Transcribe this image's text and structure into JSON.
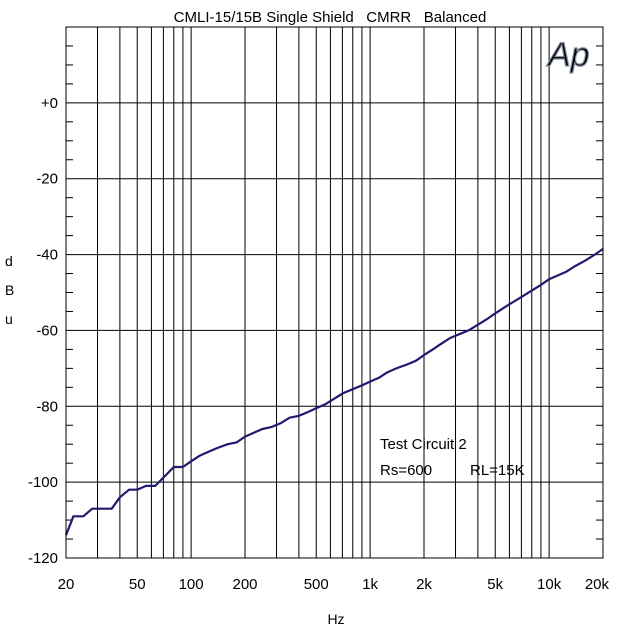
{
  "chart_data": {
    "type": "line",
    "title": "CMLI-15/15B Single Shield   CMRR   Balanced",
    "xlabel": "Hz",
    "ylabel": [
      "d",
      "B",
      "u"
    ],
    "x_scale": "log",
    "xlim": [
      20,
      20000
    ],
    "ylim": [
      -120,
      20
    ],
    "grid": true,
    "x_ticks": [
      20,
      50,
      100,
      200,
      500,
      1000,
      2000,
      5000,
      10000,
      20000
    ],
    "x_tick_labels": [
      "20",
      "50",
      "100",
      "200",
      "500",
      "1k",
      "2k",
      "5k",
      "10k",
      "20k"
    ],
    "y_ticks": [
      0,
      -20,
      -40,
      -60,
      -80,
      -100,
      -120
    ],
    "y_tick_labels": [
      "+0",
      "-20",
      "-40",
      "-60",
      "-80",
      "-100",
      "-120"
    ],
    "annotations": [
      "Test Circuit 2",
      "Rs=600",
      "RL=15K"
    ],
    "logo": "Ap",
    "series": [
      {
        "color": "#1f1a6e",
        "x": [
          20,
          22,
          25,
          28,
          32,
          36,
          40,
          45,
          50,
          56,
          63,
          71,
          80,
          90,
          100,
          112,
          125,
          140,
          160,
          180,
          200,
          224,
          250,
          280,
          315,
          355,
          400,
          450,
          500,
          560,
          630,
          710,
          800,
          900,
          1000,
          1120,
          1250,
          1400,
          1600,
          1800,
          2000,
          2240,
          2500,
          2800,
          3150,
          3550,
          4000,
          4500,
          5000,
          5600,
          6300,
          7100,
          8000,
          9000,
          10000,
          11200,
          12500,
          14000,
          16000,
          18000,
          20000
        ],
        "y": [
          -114,
          -109,
          -109,
          -107,
          -107,
          -107,
          -104,
          -102,
          -102,
          -101,
          -101,
          -98.5,
          -96,
          -96,
          -94.5,
          -93,
          -92,
          -91,
          -90,
          -89.5,
          -88,
          -87,
          -86,
          -85.5,
          -84.5,
          -83,
          -82.5,
          -81.5,
          -80.5,
          -79.5,
          -78,
          -76.5,
          -75.5,
          -74.5,
          -73.5,
          -72.5,
          -71,
          -70,
          -69,
          -68,
          -66.5,
          -65,
          -63.5,
          -62,
          -61,
          -60,
          -58.5,
          -57,
          -55.5,
          -54,
          -52.5,
          -51,
          -49.5,
          -48,
          -46.5,
          -45.5,
          -44.5,
          -43,
          -41.5,
          -40,
          -38.5
        ]
      }
    ]
  }
}
